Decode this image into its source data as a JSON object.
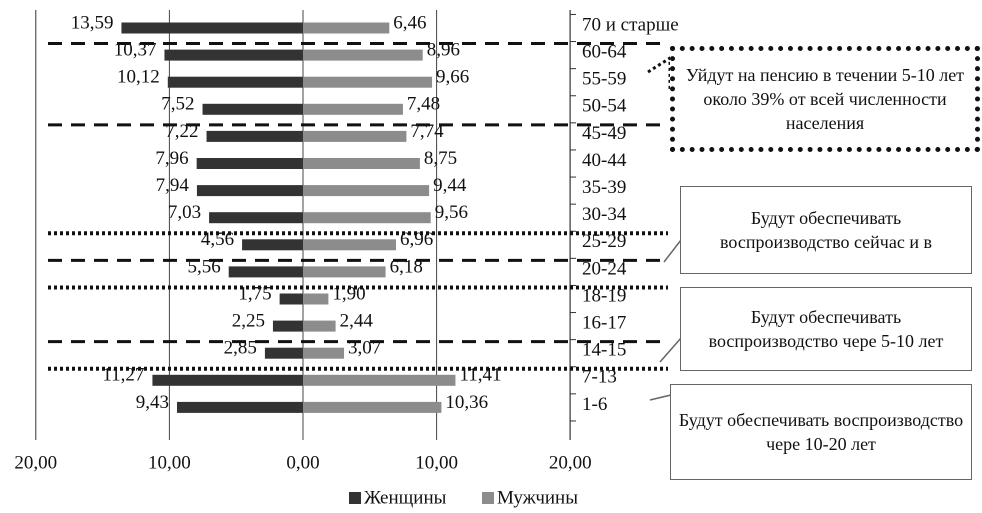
{
  "chart_data": {
    "type": "bar",
    "orientation": "horizontal",
    "layout": "population-pyramid",
    "categories": [
      "70 и старше",
      "60-64",
      "55-59",
      "50-54",
      "45-49",
      "40-44",
      "35-39",
      "30-34",
      "25-29",
      "20-24",
      "18-19",
      "16-17",
      "14-15",
      "7-13",
      "1-6"
    ],
    "series": [
      {
        "name": "Женщины",
        "color": "#333333",
        "direction": "left",
        "values": [
          13.59,
          10.37,
          10.12,
          7.52,
          7.22,
          7.96,
          7.94,
          7.03,
          4.56,
          5.56,
          1.75,
          2.25,
          2.85,
          11.27,
          9.43
        ],
        "labels": [
          "13,59",
          "10,37",
          "10,12",
          "7,52",
          "7,22",
          "7,96",
          "7,94",
          "7,03",
          "4,56",
          "5,56",
          "1,75",
          "2,25",
          "2,85",
          "11,27",
          "9,43"
        ]
      },
      {
        "name": "Мужчины",
        "color": "#8c8c8c",
        "direction": "right",
        "values": [
          6.46,
          8.96,
          9.66,
          7.48,
          7.74,
          8.75,
          9.44,
          9.56,
          6.96,
          6.18,
          1.9,
          2.44,
          3.07,
          11.41,
          10.36
        ],
        "labels": [
          "6,46",
          "8,96",
          "9,66",
          "7,48",
          "7,74",
          "8,75",
          "9,44",
          "9,56",
          "6,96",
          "6,18",
          "1,90",
          "2,44",
          "3,07",
          "11,41",
          "10,36"
        ]
      }
    ],
    "xlim": [
      -20,
      20
    ],
    "x_ticks": [
      -20,
      -10,
      0,
      10,
      20
    ],
    "x_tick_labels": [
      "20,00",
      "10,00",
      "0,00",
      "10,00",
      "20,00"
    ],
    "grid": "vertical",
    "legend_position": "bottom",
    "title": "",
    "xlabel": "",
    "ylabel": "",
    "annotations": [
      {
        "text": "Уйдут на пенсию в течении 5-10 лет около 39% от всей численности населения",
        "style": "dotted",
        "points_to": "55-59"
      },
      {
        "text": "Будут обеспечивать воспроизводство сейчас и в",
        "style": "solid",
        "points_to": "20-24"
      },
      {
        "text": "Будут обеспечивать воспроизводство чере 5-10 лет",
        "style": "solid",
        "points_to": "14-15"
      },
      {
        "text": "Будут обеспечивать воспроизводство чере 10-20 лет",
        "style": "solid",
        "points_to": "7-13"
      }
    ],
    "separators": [
      {
        "style": "dashed",
        "above": "60-64"
      },
      {
        "style": "dashed",
        "above": "45-49"
      },
      {
        "style": "dotted",
        "above": "25-29"
      },
      {
        "style": "dashed",
        "above": "20-24"
      },
      {
        "style": "dotted",
        "above": "18-19"
      },
      {
        "style": "dashed",
        "above": "14-15"
      },
      {
        "style": "dotted",
        "above": "7-13"
      }
    ]
  }
}
